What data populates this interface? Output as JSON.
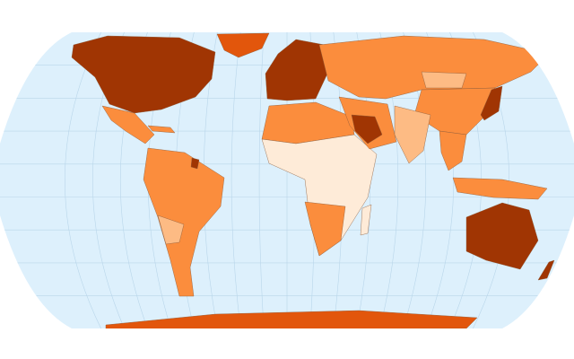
{
  "map": {
    "projection": "robinson",
    "ocean_color": "#ddf0fc",
    "graticule_color": "#b9d6ea",
    "background_color": "#ffffff",
    "class_colors": {
      "highest": "#a03503",
      "high": "#e2560c",
      "medium": "#fb8d3d",
      "low": "#fdbb84",
      "lowest": "#feebd8"
    }
  }
}
